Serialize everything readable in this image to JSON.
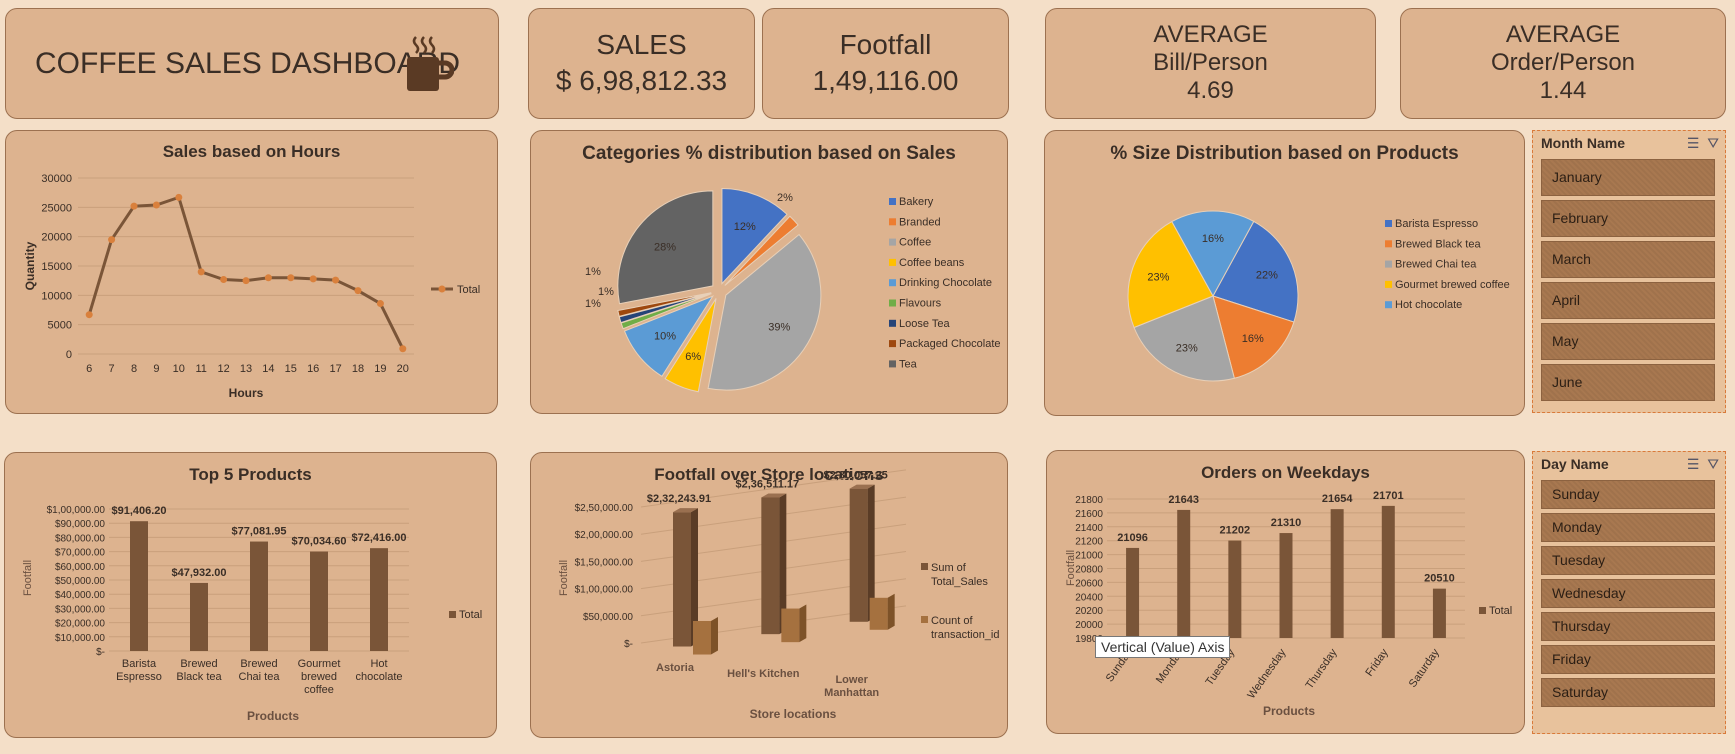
{
  "title": "COFFEE SALES DASHBOARD",
  "icon": "coffee-cup-icon",
  "kpis": {
    "sales_label": "SALES",
    "sales_value": "$ 6,98,812.33",
    "footfall_label": "Footfall",
    "footfall_value": "1,49,116.00",
    "avg_bill_label1": "AVERAGE",
    "avg_bill_label2": "Bill/Person",
    "avg_bill_value": "4.69",
    "avg_order_label1": "AVERAGE",
    "avg_order_label2": "Order/Person",
    "avg_order_value": "1.44"
  },
  "colors": {
    "background": "#f4dfc8",
    "card": "#ddb38f",
    "bar": "#7a5538",
    "bar_light": "#a5713f",
    "line": "#7a5538",
    "marker": "#d9803c"
  },
  "chart_data": [
    {
      "type": "line",
      "title": "Sales based on Hours",
      "xlabel": "Hours",
      "ylabel": "Quantity",
      "x": [
        6,
        7,
        8,
        9,
        10,
        11,
        12,
        13,
        14,
        15,
        16,
        17,
        18,
        19,
        20
      ],
      "series": [
        {
          "name": "Total",
          "values": [
            6700,
            19500,
            25200,
            25400,
            26700,
            14000,
            12700,
            12500,
            13000,
            13000,
            12800,
            12600,
            10800,
            8600,
            900
          ]
        }
      ],
      "ylim": [
        0,
        30000
      ],
      "yticks": [
        "0",
        "5000",
        "10000",
        "15000",
        "20000",
        "25000",
        "30000"
      ],
      "legend": "right"
    },
    {
      "type": "pie",
      "title": "Categories % distribution based on Sales",
      "categories": [
        "Bakery",
        "Branded",
        "Coffee",
        "Coffee beans",
        "Drinking Chocolate",
        "Flavours",
        "Loose Tea",
        "Packaged Chocolate",
        "Tea"
      ],
      "values": [
        12,
        2,
        39,
        6,
        10,
        1,
        1,
        1,
        28
      ],
      "labels": [
        "12%",
        "2%",
        "39%",
        "6%",
        "10%",
        "1%",
        "1%",
        "1%",
        "28%"
      ],
      "colors": [
        "#4472c4",
        "#ed7d31",
        "#a5a5a5",
        "#ffc000",
        "#5b9bd5",
        "#70ad47",
        "#264478",
        "#9e480e",
        "#636363"
      ],
      "legend": "right"
    },
    {
      "type": "pie",
      "title": "% Size Distribution based on Products",
      "categories": [
        "Barista Espresso",
        "Brewed Black tea",
        "Brewed Chai tea",
        "Gourmet brewed coffee",
        "Hot chocolate"
      ],
      "values": [
        22,
        16,
        23,
        23,
        16
      ],
      "labels": [
        "22%",
        "16%",
        "23%",
        "23%",
        "16%"
      ],
      "colors": [
        "#4472c4",
        "#ed7d31",
        "#a5a5a5",
        "#ffc000",
        "#5b9bd5"
      ],
      "legend": "right"
    },
    {
      "type": "bar",
      "title": "Top 5 Products",
      "xlabel": "Products",
      "ylabel": "Footfall",
      "categories": [
        [
          "Barista",
          "Espresso"
        ],
        [
          "Brewed",
          "Black tea"
        ],
        [
          "Brewed",
          "Chai tea"
        ],
        [
          "Gourmet",
          "brewed",
          "coffee"
        ],
        [
          "Hot",
          "chocolate"
        ]
      ],
      "series": [
        {
          "name": "Total",
          "values": [
            91406.2,
            47932.0,
            77081.95,
            70034.6,
            72416.0
          ]
        }
      ],
      "data_labels": [
        "$91,406.20",
        "$47,932.00",
        "$77,081.95",
        "$70,034.60",
        "$72,416.00"
      ],
      "yticks": [
        "$-",
        "$10,000.00",
        "$20,000.00",
        "$30,000.00",
        "$40,000.00",
        "$50,000.00",
        "$60,000.00",
        "$70,000.00",
        "$80,000.00",
        "$90,000.00",
        "$1,00,000.00"
      ],
      "ylim": [
        0,
        100000
      ],
      "legend": "right"
    },
    {
      "type": "bar",
      "title": "Footfall over Store locations",
      "xlabel": "Store locations",
      "ylabel": "Footfall",
      "categories": [
        [
          "Astoria"
        ],
        [
          "Hell's Kitchen"
        ],
        [
          "Lower",
          "Manhattan"
        ]
      ],
      "series": [
        {
          "name": "Sum of Total_Sales",
          "values": [
            232243.91,
            236511.17,
            230057.25
          ]
        },
        {
          "name": "Count of transaction_id",
          "values": [
            50599,
            50735,
            47782
          ]
        }
      ],
      "data_labels": [
        "$2,32,243.91",
        "$2,36,511.17",
        "$2,30,057.25"
      ],
      "yticks": [
        "$-",
        "$50,000.00",
        "$1,00,000.00",
        "$1,50,000.00",
        "$2,00,000.00",
        "$2,50,000.00"
      ],
      "ylim": [
        0,
        250000
      ],
      "legend_labels": [
        [
          "Sum of",
          "Total_Sales"
        ],
        [
          "Count of",
          "transaction_id"
        ]
      ],
      "legend": "right"
    },
    {
      "type": "bar",
      "title": "Orders on Weekdays",
      "xlabel": "Products",
      "ylabel": "Footfall",
      "categories": [
        "Sunday",
        "Monday",
        "Tuesday",
        "Wednesday",
        "Thursday",
        "Friday",
        "Saturday"
      ],
      "series": [
        {
          "name": "Total",
          "values": [
            21096,
            21643,
            21202,
            21310,
            21654,
            21701,
            20510
          ]
        }
      ],
      "data_labels": [
        "21096",
        "21643",
        "21202",
        "21310",
        "21654",
        "21701",
        "20510"
      ],
      "yticks": [
        "19800",
        "20000",
        "20200",
        "20400",
        "20600",
        "20800",
        "21000",
        "21200",
        "21400",
        "21600",
        "21800"
      ],
      "ylim": [
        19800,
        21800
      ],
      "legend": "right"
    }
  ],
  "slicers": {
    "month": {
      "header": "Month Name",
      "items": [
        "January",
        "February",
        "March",
        "April",
        "May",
        "June"
      ]
    },
    "day": {
      "header": "Day Name",
      "items": [
        "Sunday",
        "Monday",
        "Tuesday",
        "Wednesday",
        "Thursday",
        "Friday",
        "Saturday"
      ]
    }
  },
  "tooltip": "Vertical (Value) Axis"
}
